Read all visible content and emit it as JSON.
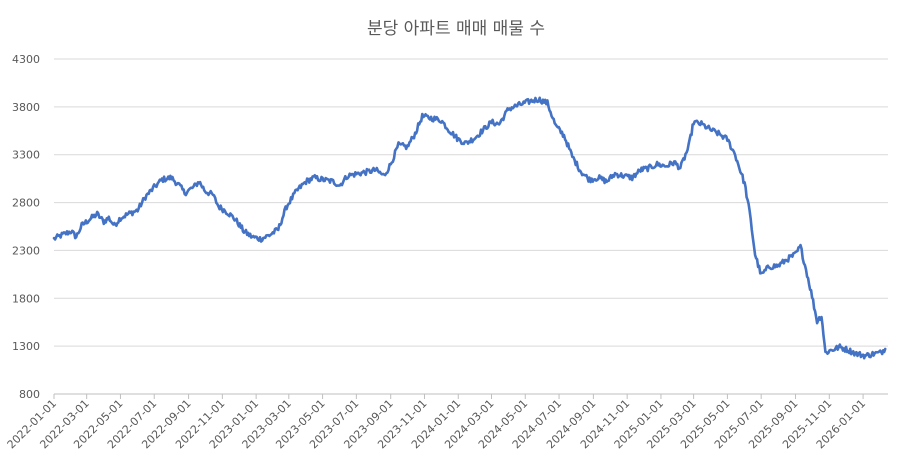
{
  "chart_data": {
    "type": "line",
    "title": "분당 아파트 매매 매물 수",
    "xlabel": "",
    "ylabel": "",
    "ylim": [
      800,
      4300
    ],
    "yticks": [
      "4300",
      "3800",
      "3300",
      "2800",
      "2300",
      "1800",
      "1300",
      "800"
    ],
    "xlim": [
      "2022-01-01",
      "2026-02-15"
    ],
    "xticks": [
      "2022-01-01",
      "2022-03-01",
      "2022-05-01",
      "2022-07-01",
      "2022-09-01",
      "2022-11-01",
      "2023-01-01",
      "2023-03-01",
      "2023-05-01",
      "2023-07-01",
      "2023-09-01",
      "2023-11-01",
      "2024-01-01",
      "2024-03-01",
      "2024-05-01",
      "2024-07-01",
      "2024-09-01",
      "2024-11-01",
      "2025-01-01",
      "2025-03-01",
      "2025-05-01",
      "2025-07-01",
      "2025-09-01",
      "2025-11-01",
      "2026-01-01"
    ],
    "grid": true,
    "legend": "none",
    "series": [
      {
        "color": "#4472c4",
        "points": [
          [
            "2022-01-01",
            2420
          ],
          [
            "2022-01-15",
            2460
          ],
          [
            "2022-02-01",
            2500
          ],
          [
            "2022-02-10",
            2440
          ],
          [
            "2022-02-20",
            2560
          ],
          [
            "2022-03-05",
            2620
          ],
          [
            "2022-03-20",
            2680
          ],
          [
            "2022-04-01",
            2600
          ],
          [
            "2022-04-10",
            2640
          ],
          [
            "2022-04-20",
            2560
          ],
          [
            "2022-05-01",
            2640
          ],
          [
            "2022-05-15",
            2680
          ],
          [
            "2022-06-01",
            2720
          ],
          [
            "2022-06-15",
            2860
          ],
          [
            "2022-07-01",
            2960
          ],
          [
            "2022-07-15",
            3040
          ],
          [
            "2022-08-01",
            3060
          ],
          [
            "2022-08-15",
            2980
          ],
          [
            "2022-08-25",
            2900
          ],
          [
            "2022-09-10",
            2960
          ],
          [
            "2022-09-20",
            3020
          ],
          [
            "2022-10-01",
            2920
          ],
          [
            "2022-10-15",
            2880
          ],
          [
            "2022-10-25",
            2760
          ],
          [
            "2022-11-10",
            2700
          ],
          [
            "2022-11-25",
            2620
          ],
          [
            "2022-12-10",
            2500
          ],
          [
            "2022-12-25",
            2440
          ],
          [
            "2023-01-10",
            2420
          ],
          [
            "2023-01-25",
            2460
          ],
          [
            "2023-02-10",
            2520
          ],
          [
            "2023-02-25",
            2760
          ],
          [
            "2023-03-15",
            2920
          ],
          [
            "2023-04-01",
            3020
          ],
          [
            "2023-04-15",
            3060
          ],
          [
            "2023-05-01",
            3040
          ],
          [
            "2023-05-20",
            3020
          ],
          [
            "2023-06-01",
            2980
          ],
          [
            "2023-06-15",
            3080
          ],
          [
            "2023-07-01",
            3100
          ],
          [
            "2023-07-20",
            3120
          ],
          [
            "2023-08-05",
            3140
          ],
          [
            "2023-08-20",
            3080
          ],
          [
            "2023-09-01",
            3200
          ],
          [
            "2023-09-15",
            3400
          ],
          [
            "2023-10-01",
            3380
          ],
          [
            "2023-10-15",
            3520
          ],
          [
            "2023-10-28",
            3700
          ],
          [
            "2023-11-15",
            3680
          ],
          [
            "2023-12-01",
            3660
          ],
          [
            "2023-12-15",
            3560
          ],
          [
            "2024-01-01",
            3460
          ],
          [
            "2024-01-15",
            3420
          ],
          [
            "2024-02-01",
            3480
          ],
          [
            "2024-02-15",
            3560
          ],
          [
            "2024-03-01",
            3640
          ],
          [
            "2024-03-15",
            3620
          ],
          [
            "2024-04-01",
            3780
          ],
          [
            "2024-04-20",
            3820
          ],
          [
            "2024-05-10",
            3860
          ],
          [
            "2024-05-25",
            3880
          ],
          [
            "2024-06-10",
            3840
          ],
          [
            "2024-06-25",
            3600
          ],
          [
            "2024-07-10",
            3500
          ],
          [
            "2024-07-25",
            3280
          ],
          [
            "2024-08-10",
            3120
          ],
          [
            "2024-08-25",
            3040
          ],
          [
            "2024-09-10",
            3060
          ],
          [
            "2024-09-25",
            3020
          ],
          [
            "2024-10-10",
            3100
          ],
          [
            "2024-10-25",
            3080
          ],
          [
            "2024-11-10",
            3060
          ],
          [
            "2024-11-25",
            3140
          ],
          [
            "2024-12-10",
            3160
          ],
          [
            "2024-12-25",
            3200
          ],
          [
            "2025-01-10",
            3180
          ],
          [
            "2025-01-25",
            3220
          ],
          [
            "2025-02-05",
            3160
          ],
          [
            "2025-02-20",
            3380
          ],
          [
            "2025-03-01",
            3640
          ],
          [
            "2025-03-15",
            3620
          ],
          [
            "2025-04-01",
            3560
          ],
          [
            "2025-04-15",
            3520
          ],
          [
            "2025-05-01",
            3460
          ],
          [
            "2025-05-15",
            3300
          ],
          [
            "2025-06-01",
            3000
          ],
          [
            "2025-06-10",
            2700
          ],
          [
            "2025-06-20",
            2260
          ],
          [
            "2025-07-01",
            2040
          ],
          [
            "2025-07-15",
            2130
          ],
          [
            "2025-08-01",
            2140
          ],
          [
            "2025-08-15",
            2200
          ],
          [
            "2025-09-01",
            2260
          ],
          [
            "2025-09-10",
            2340
          ],
          [
            "2025-09-20",
            2100
          ],
          [
            "2025-10-01",
            1820
          ],
          [
            "2025-10-10",
            1560
          ],
          [
            "2025-10-18",
            1620
          ],
          [
            "2025-10-25",
            1230
          ],
          [
            "2025-11-05",
            1260
          ],
          [
            "2025-11-20",
            1290
          ],
          [
            "2025-12-05",
            1260
          ],
          [
            "2025-12-20",
            1220
          ],
          [
            "2026-01-05",
            1200
          ],
          [
            "2026-01-20",
            1220
          ],
          [
            "2026-02-01",
            1230
          ],
          [
            "2026-02-10",
            1270
          ]
        ]
      }
    ]
  }
}
